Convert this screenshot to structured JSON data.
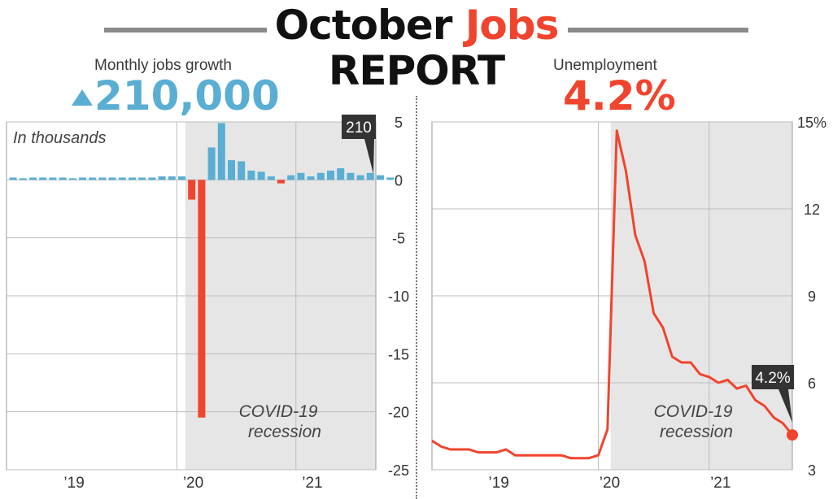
{
  "title": {
    "word1": "October",
    "word2": "Jobs",
    "line2": "REPORT"
  },
  "jobs": {
    "label": "Monthly jobs growth",
    "headline_value": "210,000",
    "inset_label": "In thousands",
    "callout": "210",
    "recession_label_1": "COVID-19",
    "recession_label_2": "recession"
  },
  "unemployment": {
    "label": "Unemployment",
    "headline_value": "4.2%",
    "callout": "4.2%",
    "recession_label_1": "COVID-19",
    "recession_label_2": "recession"
  },
  "colors": {
    "blue": "#5aaed4",
    "red": "#f0442e",
    "recession_shade": "#e6e6e6",
    "grid": "#bdbdbd",
    "callout_bg": "#333333"
  },
  "chart_data": [
    {
      "type": "bar",
      "unit": "thousands",
      "ylim": [
        -25,
        5
      ],
      "yticks": [
        5,
        0,
        -5,
        -10,
        -15,
        -20,
        -25
      ],
      "xticks": [
        "’19",
        "’20",
        "’21"
      ],
      "x": [
        "2018-08",
        "2018-09",
        "2018-10",
        "2018-11",
        "2018-12",
        "2019-01",
        "2019-02",
        "2019-03",
        "2019-04",
        "2019-05",
        "2019-06",
        "2019-07",
        "2019-08",
        "2019-09",
        "2019-10",
        "2019-11",
        "2019-12",
        "2020-01",
        "2020-02",
        "2020-03",
        "2020-04",
        "2020-05",
        "2020-06",
        "2020-07",
        "2020-08",
        "2020-09",
        "2020-10",
        "2020-11",
        "2020-12",
        "2021-01",
        "2021-02",
        "2021-03",
        "2021-04",
        "2021-05",
        "2021-06",
        "2021-07",
        "2021-08",
        "2021-09",
        "2021-10"
      ],
      "values": [
        0.2,
        0.1,
        0.2,
        0.2,
        0.2,
        0.2,
        0.1,
        0.2,
        0.2,
        0.2,
        0.2,
        0.2,
        0.2,
        0.2,
        0.2,
        0.3,
        0.3,
        0.3,
        -1.7,
        -20.5,
        2.8,
        4.9,
        1.7,
        1.6,
        0.8,
        0.7,
        0.3,
        -0.3,
        0.4,
        0.6,
        0.3,
        0.6,
        0.8,
        1.0,
        0.6,
        0.4,
        0.6,
        0.4,
        0.2
      ],
      "recession": [
        "2020-02",
        "2021-10"
      ],
      "annotations": [
        "COVID-19",
        "recession",
        "210"
      ]
    },
    {
      "type": "line",
      "unit": "%",
      "ylim": [
        3,
        15
      ],
      "yticks": [
        15,
        12,
        9,
        6,
        3
      ],
      "ytick_labels": [
        "15%",
        "12",
        "9",
        "6",
        "3"
      ],
      "xticks": [
        "’19",
        "’20",
        "’21"
      ],
      "x": [
        "2018-07",
        "2018-08",
        "2018-09",
        "2018-10",
        "2018-11",
        "2018-12",
        "2019-01",
        "2019-02",
        "2019-03",
        "2019-04",
        "2019-05",
        "2019-06",
        "2019-07",
        "2019-08",
        "2019-09",
        "2019-10",
        "2019-11",
        "2019-12",
        "2020-01",
        "2020-02",
        "2020-03",
        "2020-04",
        "2020-05",
        "2020-06",
        "2020-07",
        "2020-08",
        "2020-09",
        "2020-10",
        "2020-11",
        "2020-12",
        "2021-01",
        "2021-02",
        "2021-03",
        "2021-04",
        "2021-05",
        "2021-06",
        "2021-07",
        "2021-08",
        "2021-09",
        "2021-10"
      ],
      "values": [
        4.0,
        3.8,
        3.7,
        3.7,
        3.7,
        3.6,
        3.6,
        3.6,
        3.7,
        3.5,
        3.5,
        3.5,
        3.5,
        3.5,
        3.5,
        3.4,
        3.4,
        3.4,
        3.5,
        4.4,
        14.7,
        13.3,
        11.1,
        10.2,
        8.4,
        7.9,
        6.9,
        6.7,
        6.7,
        6.3,
        6.2,
        6.0,
        6.1,
        5.8,
        5.9,
        5.4,
        5.2,
        4.8,
        4.6,
        4.2
      ],
      "recession": [
        "2020-02",
        "2021-10"
      ],
      "annotations": [
        "COVID-19",
        "recession",
        "4.2%"
      ]
    }
  ]
}
